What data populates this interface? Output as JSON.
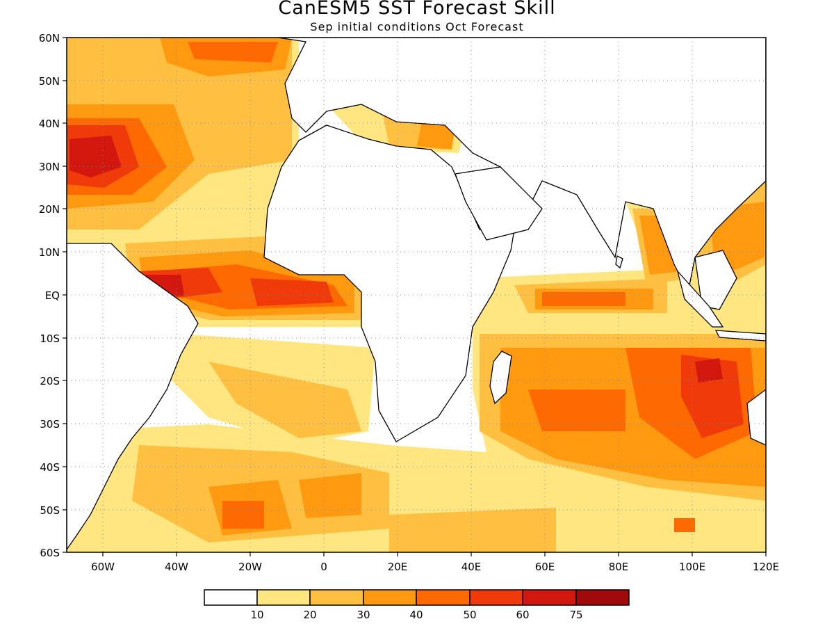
{
  "title": "CanESM5 SST Forecast Skill",
  "subtitle": "Sep initial conditions  Oct Forecast",
  "map": {
    "lon_range": [
      -70,
      120
    ],
    "lat_range": [
      -60,
      60
    ],
    "lat_ticks": [
      "60N",
      "50N",
      "40N",
      "30N",
      "20N",
      "10N",
      "EQ",
      "10S",
      "20S",
      "30S",
      "40S",
      "50S",
      "60S"
    ],
    "lon_ticks": [
      "60W",
      "40W",
      "20W",
      "0",
      "20E",
      "40E",
      "60E",
      "80E",
      "100E",
      "120E"
    ],
    "grid": "dotted"
  },
  "colorbar": {
    "labels": [
      "10",
      "20",
      "30",
      "40",
      "50",
      "60",
      "75"
    ],
    "colors": [
      "#ffffff",
      "#ffe680",
      "#ffbf40",
      "#ff9a10",
      "#ff6a00",
      "#f03a0a",
      "#d2170e",
      "#a00a0a"
    ]
  }
}
